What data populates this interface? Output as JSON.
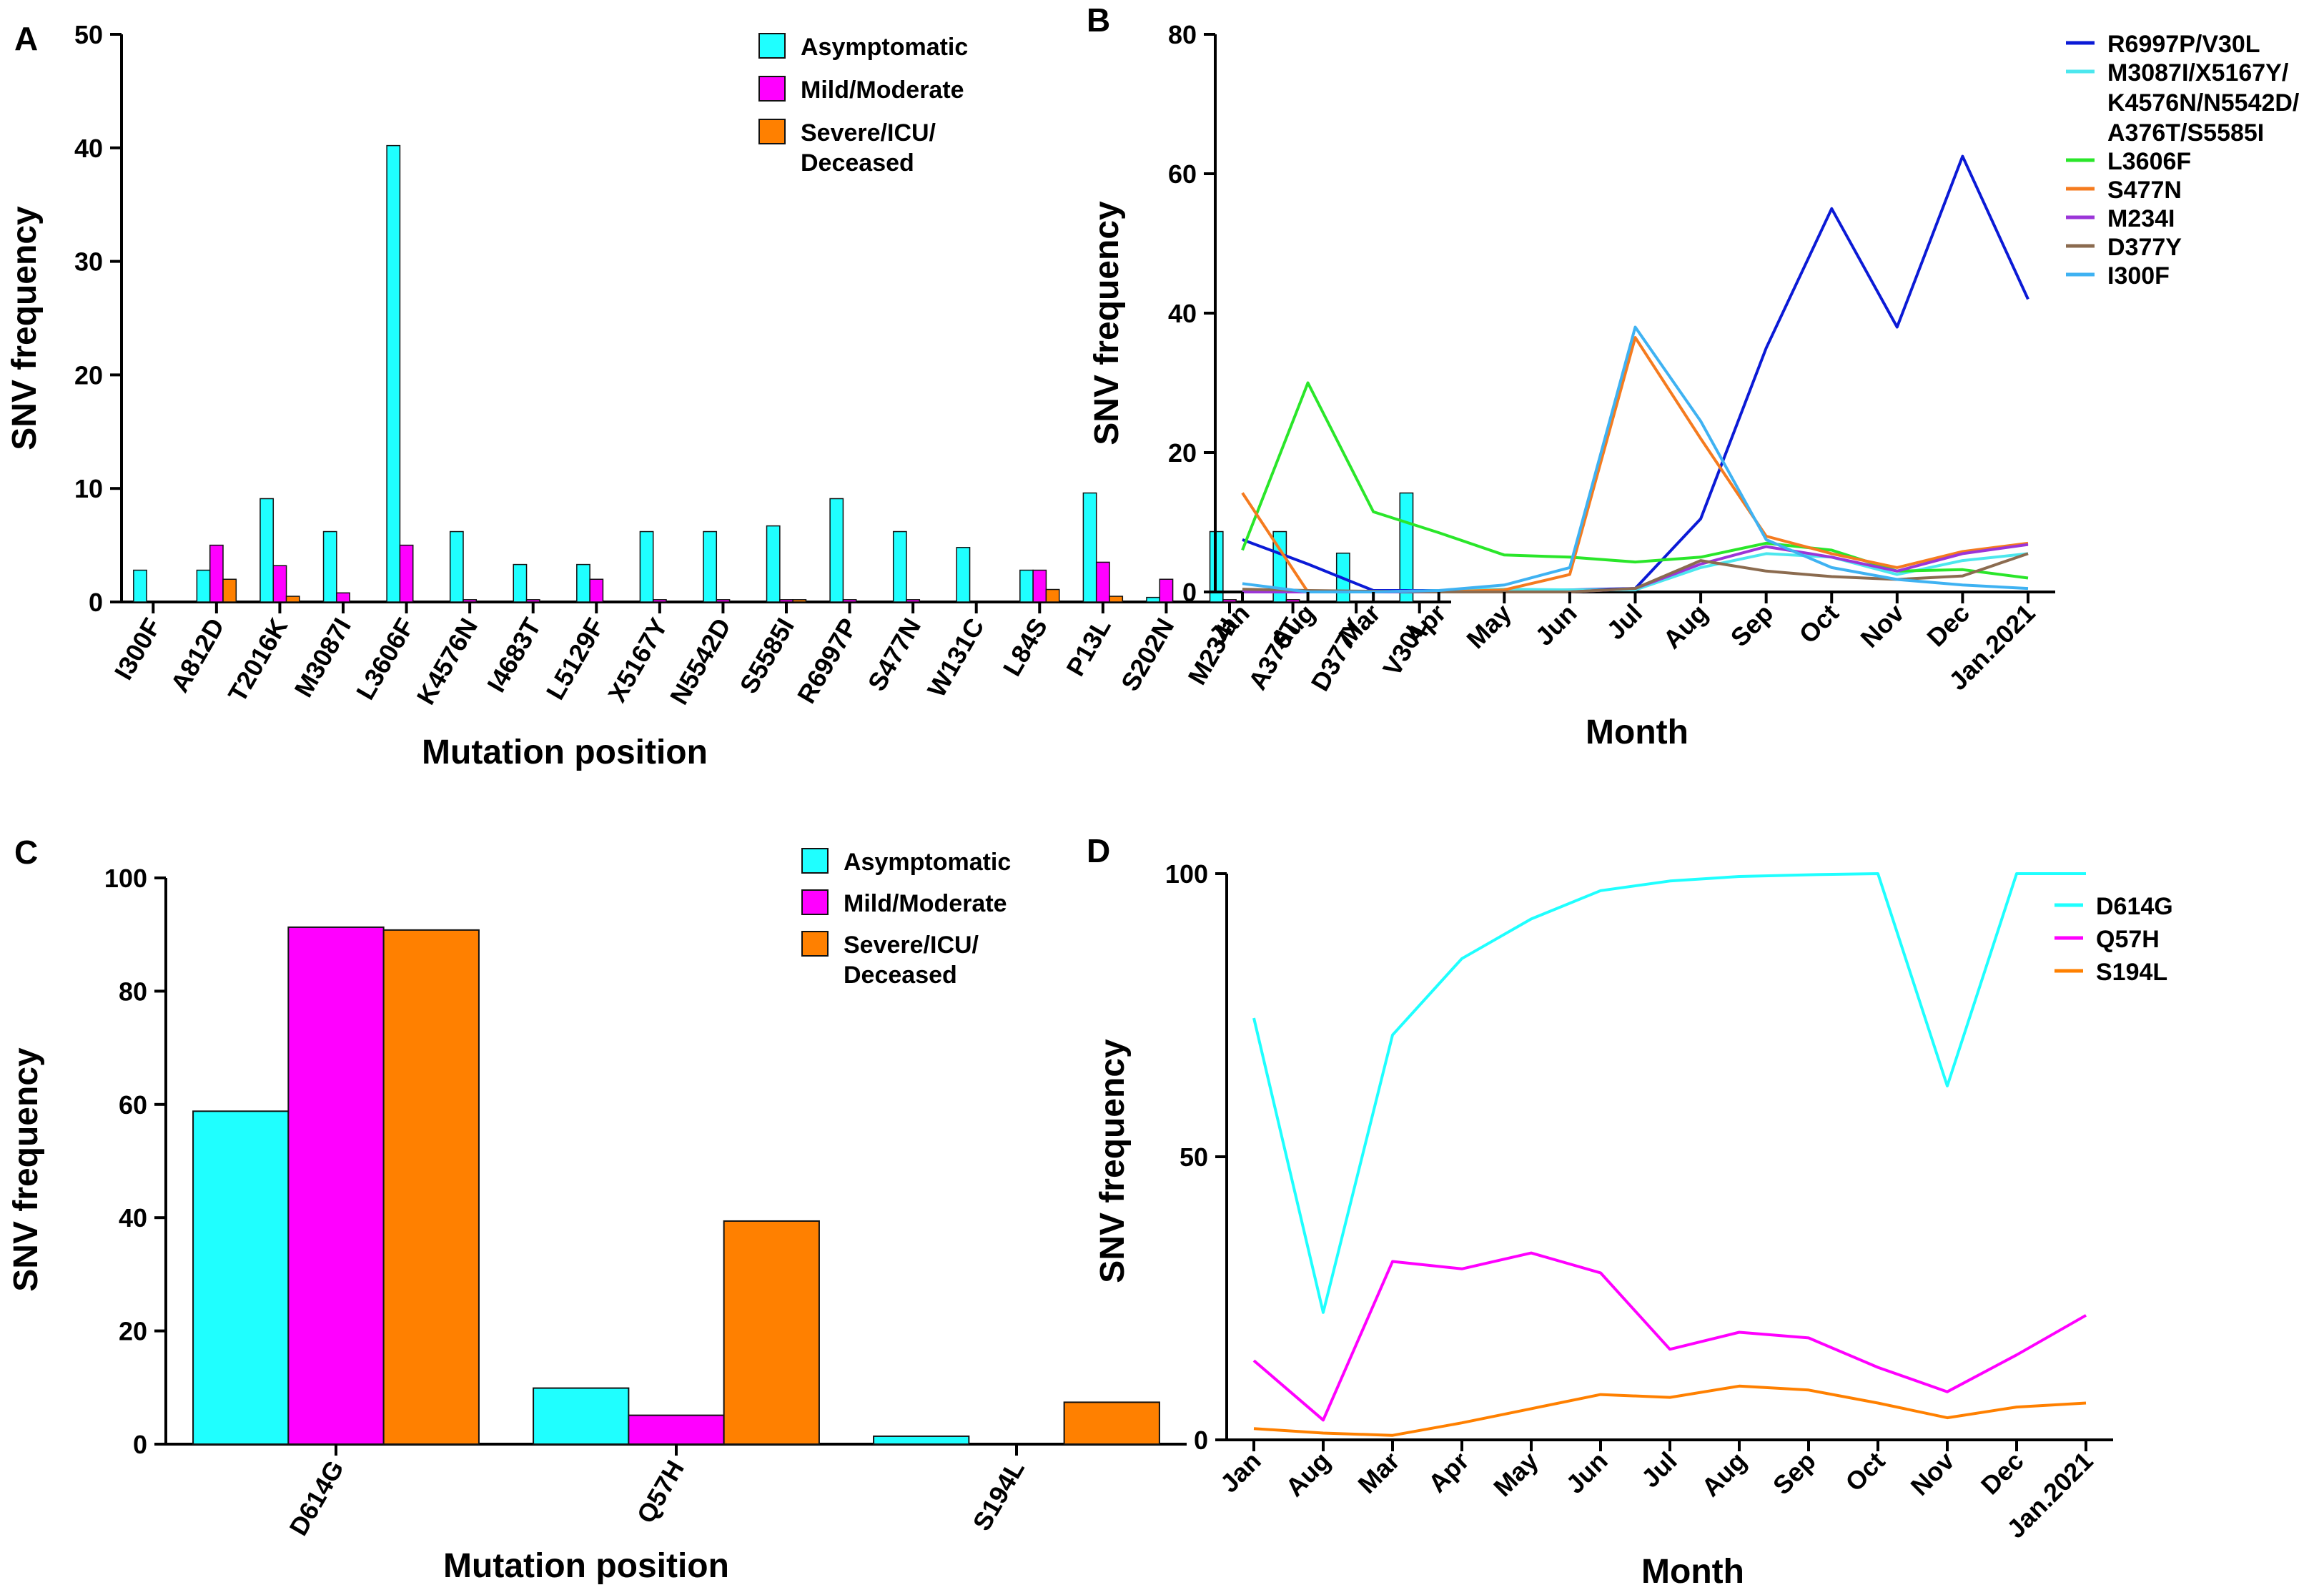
{
  "colors": {
    "asymptomatic": "#1fffff",
    "mild": "#ff00ff",
    "severe": "#ff8000",
    "R6997P": "#0b1ad6",
    "M3087I": "#4ce7ee",
    "L3606F": "#2ae62a",
    "S477N": "#f57b1f",
    "M234I": "#9b35d8",
    "D377Y": "#8b6b4f",
    "I300F": "#3fb2f2"
  },
  "chart_data": [
    {
      "panel": "A",
      "type": "bar",
      "xlabel": "Mutation position",
      "ylabel": "SNV frequency",
      "ylim": [
        0,
        50
      ],
      "yticks": [
        0,
        10,
        20,
        30,
        40,
        50
      ],
      "legend_position": "top-right",
      "categories": [
        "I300F",
        "A812D",
        "T2016K",
        "M3087I",
        "L3606F",
        "K4576N",
        "I4683T",
        "L5129F",
        "X5167Y",
        "N5542D",
        "S5585I",
        "R6997P",
        "S477N",
        "W131C",
        "L84S",
        "P13L",
        "S202N",
        "M234I",
        "A376T",
        "D377Y",
        "V30L"
      ],
      "series": [
        {
          "name": "Asymptomatic",
          "color_key": "asymptomatic",
          "values": [
            2.8,
            2.8,
            9.1,
            6.2,
            40.2,
            6.2,
            3.3,
            3.3,
            6.2,
            6.2,
            6.7,
            9.1,
            6.2,
            4.8,
            2.8,
            9.6,
            0.4,
            6.2,
            6.2,
            4.3,
            9.6
          ]
        },
        {
          "name": "Mild/Moderate",
          "color_key": "mild",
          "values": [
            0,
            5.0,
            3.2,
            0.8,
            5.0,
            0.2,
            0.2,
            2.0,
            0.2,
            0.2,
            0.2,
            0.2,
            0.2,
            0,
            2.8,
            3.5,
            2.0,
            0.2,
            0.2,
            0,
            0
          ]
        },
        {
          "name": "Severe/ICU/\nDeceased",
          "color_key": "severe",
          "values": [
            0,
            2.0,
            0.5,
            0,
            0,
            0,
            0,
            0,
            0,
            0,
            0.2,
            0,
            0,
            0,
            1.1,
            0.5,
            0,
            0,
            0,
            0,
            0
          ]
        }
      ]
    },
    {
      "panel": "B",
      "type": "line",
      "xlabel": "Month",
      "ylabel": "SNV frequency",
      "ylim": [
        0,
        80
      ],
      "yticks": [
        0,
        20,
        40,
        60,
        80
      ],
      "legend_position": "top-right",
      "categories": [
        "Jan",
        "Aug",
        "Mar",
        "Apr",
        "May",
        "Jun",
        "Jul",
        "Aug",
        "Sep",
        "Oct",
        "Nov",
        "Dec",
        "Jan.2021"
      ],
      "series": [
        {
          "name": "R6997P/V30L",
          "color_key": "R6997P",
          "values": [
            7.5,
            4,
            0.2,
            0.2,
            0.2,
            0.3,
            0.5,
            10.5,
            35,
            55,
            38,
            62.5,
            42
          ]
        },
        {
          "name": "M3087I/X5167Y/\nK4576N/N5542D/\nA376T/S5585I",
          "color_key": "M3087I",
          "values": [
            0,
            0,
            0,
            0.2,
            0.4,
            0.3,
            0.3,
            3.5,
            5.5,
            5,
            2.5,
            4.5,
            5.5
          ]
        },
        {
          "name": "L3606F",
          "color_key": "L3606F",
          "values": [
            6,
            30,
            11.5,
            8.5,
            5.3,
            5,
            4.3,
            5,
            7,
            6,
            3,
            3.2,
            2
          ]
        },
        {
          "name": "S477N",
          "color_key": "S477N",
          "values": [
            14.2,
            0,
            0,
            0,
            0.3,
            2.5,
            36.5,
            22,
            8,
            5.5,
            3.5,
            5.8,
            7
          ]
        },
        {
          "name": "M234I",
          "color_key": "M234I",
          "values": [
            0,
            0,
            0,
            0,
            0,
            0,
            0.5,
            4,
            6.5,
            5,
            3,
            5.5,
            6.8
          ]
        },
        {
          "name": "D377Y",
          "color_key": "D377Y",
          "values": [
            0.4,
            0.2,
            0.1,
            0,
            0,
            0,
            0.5,
            4.5,
            3,
            2.2,
            1.8,
            2.3,
            5.5
          ]
        },
        {
          "name": "I300F",
          "color_key": "I300F",
          "values": [
            1.2,
            0,
            0,
            0.2,
            1,
            3.5,
            38,
            24.5,
            7.5,
            3.5,
            1.8,
            1,
            0.5
          ]
        }
      ]
    },
    {
      "panel": "C",
      "type": "bar",
      "xlabel": "Mutation position",
      "ylabel": "SNV frequency",
      "ylim": [
        0,
        100
      ],
      "yticks": [
        0,
        20,
        40,
        60,
        80,
        100
      ],
      "legend_position": "top-right",
      "categories": [
        "D614G",
        "Q57H",
        "S194L"
      ],
      "series": [
        {
          "name": "Asymptomatic",
          "color_key": "asymptomatic",
          "values": [
            58.8,
            9.9,
            1.4
          ]
        },
        {
          "name": "Mild/Moderate",
          "color_key": "mild",
          "values": [
            91.3,
            5.1,
            0
          ]
        },
        {
          "name": "Severe/ICU/\nDeceased",
          "color_key": "severe",
          "values": [
            90.8,
            39.4,
            7.4
          ]
        }
      ]
    },
    {
      "panel": "D",
      "type": "line",
      "xlabel": "Month",
      "ylabel": "SNV frequency",
      "ylim": [
        0,
        100
      ],
      "yticks": [
        0,
        50,
        100
      ],
      "legend_position": "top-right",
      "categories": [
        "Jan",
        "Aug",
        "Mar",
        "Apr",
        "May",
        "Jun",
        "Jul",
        "Aug",
        "Sep",
        "Oct",
        "Nov",
        "Dec",
        "Jan.2021"
      ],
      "series": [
        {
          "name": "D614G",
          "color_key": "asymptomatic",
          "values": [
            74.5,
            22.5,
            71.5,
            85,
            92,
            97,
            98.7,
            99.5,
            99.8,
            100,
            62.5,
            100,
            100
          ]
        },
        {
          "name": "Q57H",
          "color_key": "mild",
          "values": [
            14,
            3.5,
            31.5,
            30.2,
            33,
            29.5,
            16,
            19,
            18,
            12.8,
            8.5,
            15,
            22
          ]
        },
        {
          "name": "S194L",
          "color_key": "severe",
          "values": [
            2,
            1.2,
            0.8,
            3,
            5.5,
            8,
            7.5,
            9.5,
            8.8,
            6.5,
            3.9,
            5.8,
            6.5
          ]
        }
      ]
    }
  ]
}
